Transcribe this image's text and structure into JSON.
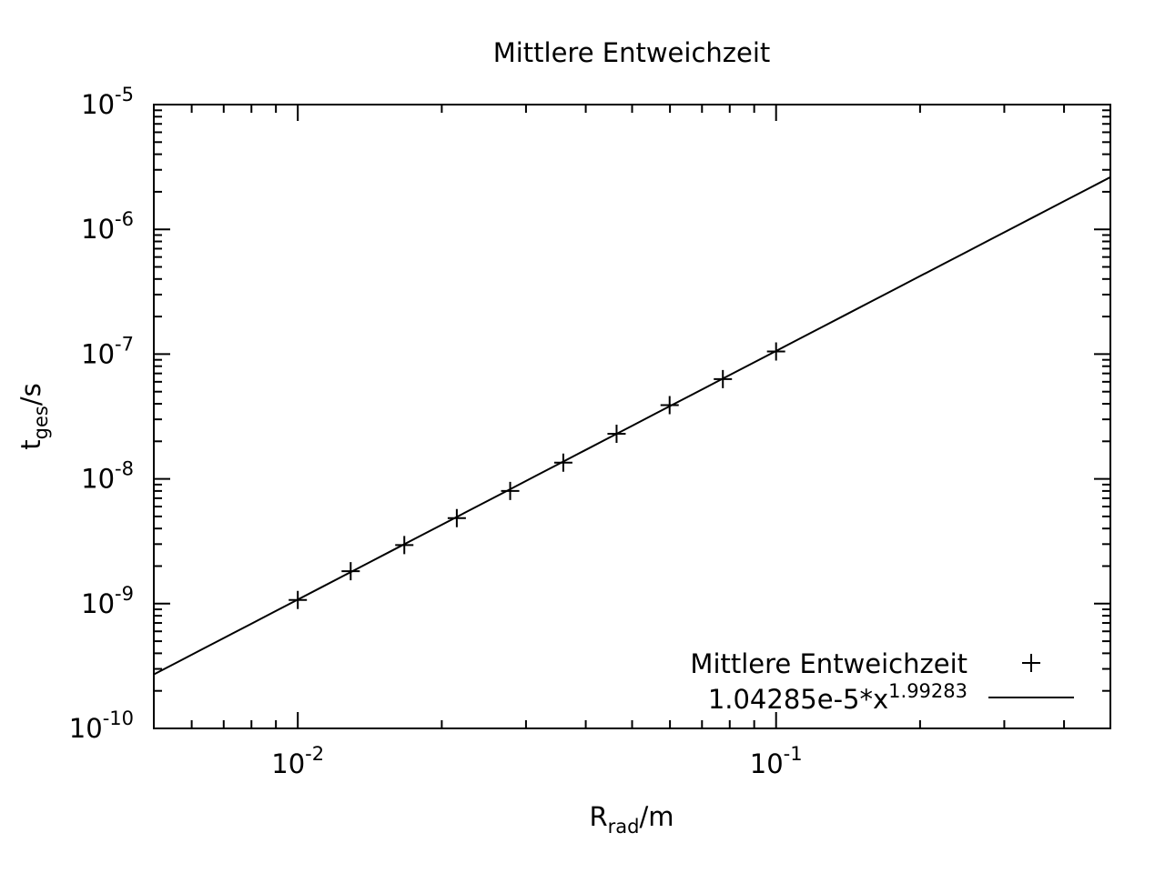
{
  "chart_data": {
    "type": "scatter",
    "title": "Mittlere Entweichzeit",
    "xlabel": {
      "base": "R",
      "sub": "rad",
      "suffix": "/m"
    },
    "ylabel": {
      "base": "t",
      "sub": "ges",
      "suffix": "/s"
    },
    "x_scale": "log",
    "y_scale": "log",
    "xlim": [
      0.005,
      0.5
    ],
    "ylim": [
      1e-10,
      1e-05
    ],
    "x_ticks": [
      {
        "value": 0.01,
        "base": "10",
        "exp": "-2"
      },
      {
        "value": 0.1,
        "base": "10",
        "exp": "-1"
      }
    ],
    "y_ticks": [
      {
        "value": 1e-10,
        "base": "10",
        "exp": "-10"
      },
      {
        "value": 1e-09,
        "base": "10",
        "exp": "-9"
      },
      {
        "value": 1e-08,
        "base": "10",
        "exp": "-8"
      },
      {
        "value": 1e-07,
        "base": "10",
        "exp": "-7"
      },
      {
        "value": 1e-06,
        "base": "10",
        "exp": "-6"
      },
      {
        "value": 1e-05,
        "base": "10",
        "exp": "-5"
      }
    ],
    "grid": false,
    "legend_position": "bottom-right",
    "series": [
      {
        "name": "Mittlere Entweichzeit",
        "kind": "points",
        "marker": "plus",
        "x": [
          0.01,
          0.0129,
          0.0167,
          0.0215,
          0.0278,
          0.0359,
          0.0464,
          0.0599,
          0.0774,
          0.1
        ],
        "y": [
          1.07e-09,
          1.82e-09,
          2.95e-09,
          4.85e-09,
          8e-09,
          1.35e-08,
          2.3e-08,
          3.9e-08,
          6.3e-08,
          1.05e-07
        ]
      },
      {
        "name": "1.04285e-5*x",
        "name_exponent": "1.99283",
        "kind": "fit",
        "coefficient": 1.04285e-05,
        "exponent": 1.99283
      }
    ],
    "colors": {
      "line": "#000000",
      "marker": "#000000",
      "frame": "#000000"
    }
  }
}
